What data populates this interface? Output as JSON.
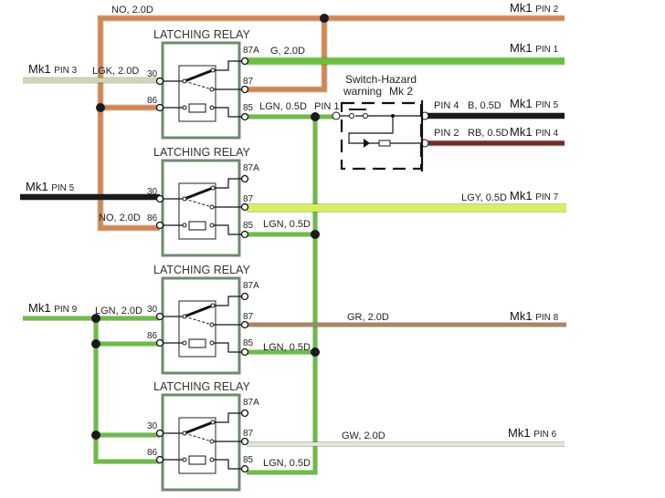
{
  "colors": {
    "orange": "#d8844a",
    "green": "#66c23a",
    "light_green_wire": "#c9dab0",
    "yellow_green": "#d9f05a",
    "black": "#1a1a1a",
    "dark_red": "#6e2a2a",
    "brown": "#a8885a",
    "pale": "#dde8d0",
    "relay_box": "#6f8a6f"
  },
  "relay_title": "LATCHING RELAY",
  "pins": {
    "p30": "30",
    "p86": "86",
    "p87a": "87A",
    "p87": "87",
    "p85": "85"
  },
  "wires": {
    "no_top": "NO, 2.0D",
    "lgk": "LGK, 2.0D",
    "g": "G, 2.0D",
    "lgn_05": "LGN, 0.5D",
    "pin1": "PIN 1",
    "no_r2": "NO, 2.0D",
    "lgy": "LGY, 0.5D",
    "lgn_20": "LGN, 2.0D",
    "gr": "GR, 2.0D",
    "gw": "GW, 2.0D",
    "b": "B, 0.5D",
    "rb": "RB, 0.5D",
    "pin4": "PIN 4",
    "pin2": "PIN 2"
  },
  "switch": {
    "line1": "Switch-Hazard",
    "line2": "warning",
    "mk": "Mk 2"
  },
  "connectors": {
    "mk1": "Mk1",
    "pin_2": "PIN 2",
    "pin_1": "PIN 1",
    "pin_3": "PIN 3",
    "pin_5a": "PIN 5",
    "pin_4": "PIN 4",
    "pin_5b": "PIN 5",
    "pin_7": "PIN 7",
    "pin_9": "PIN 9",
    "pin_8": "PIN 8",
    "pin_6": "PIN 6"
  }
}
